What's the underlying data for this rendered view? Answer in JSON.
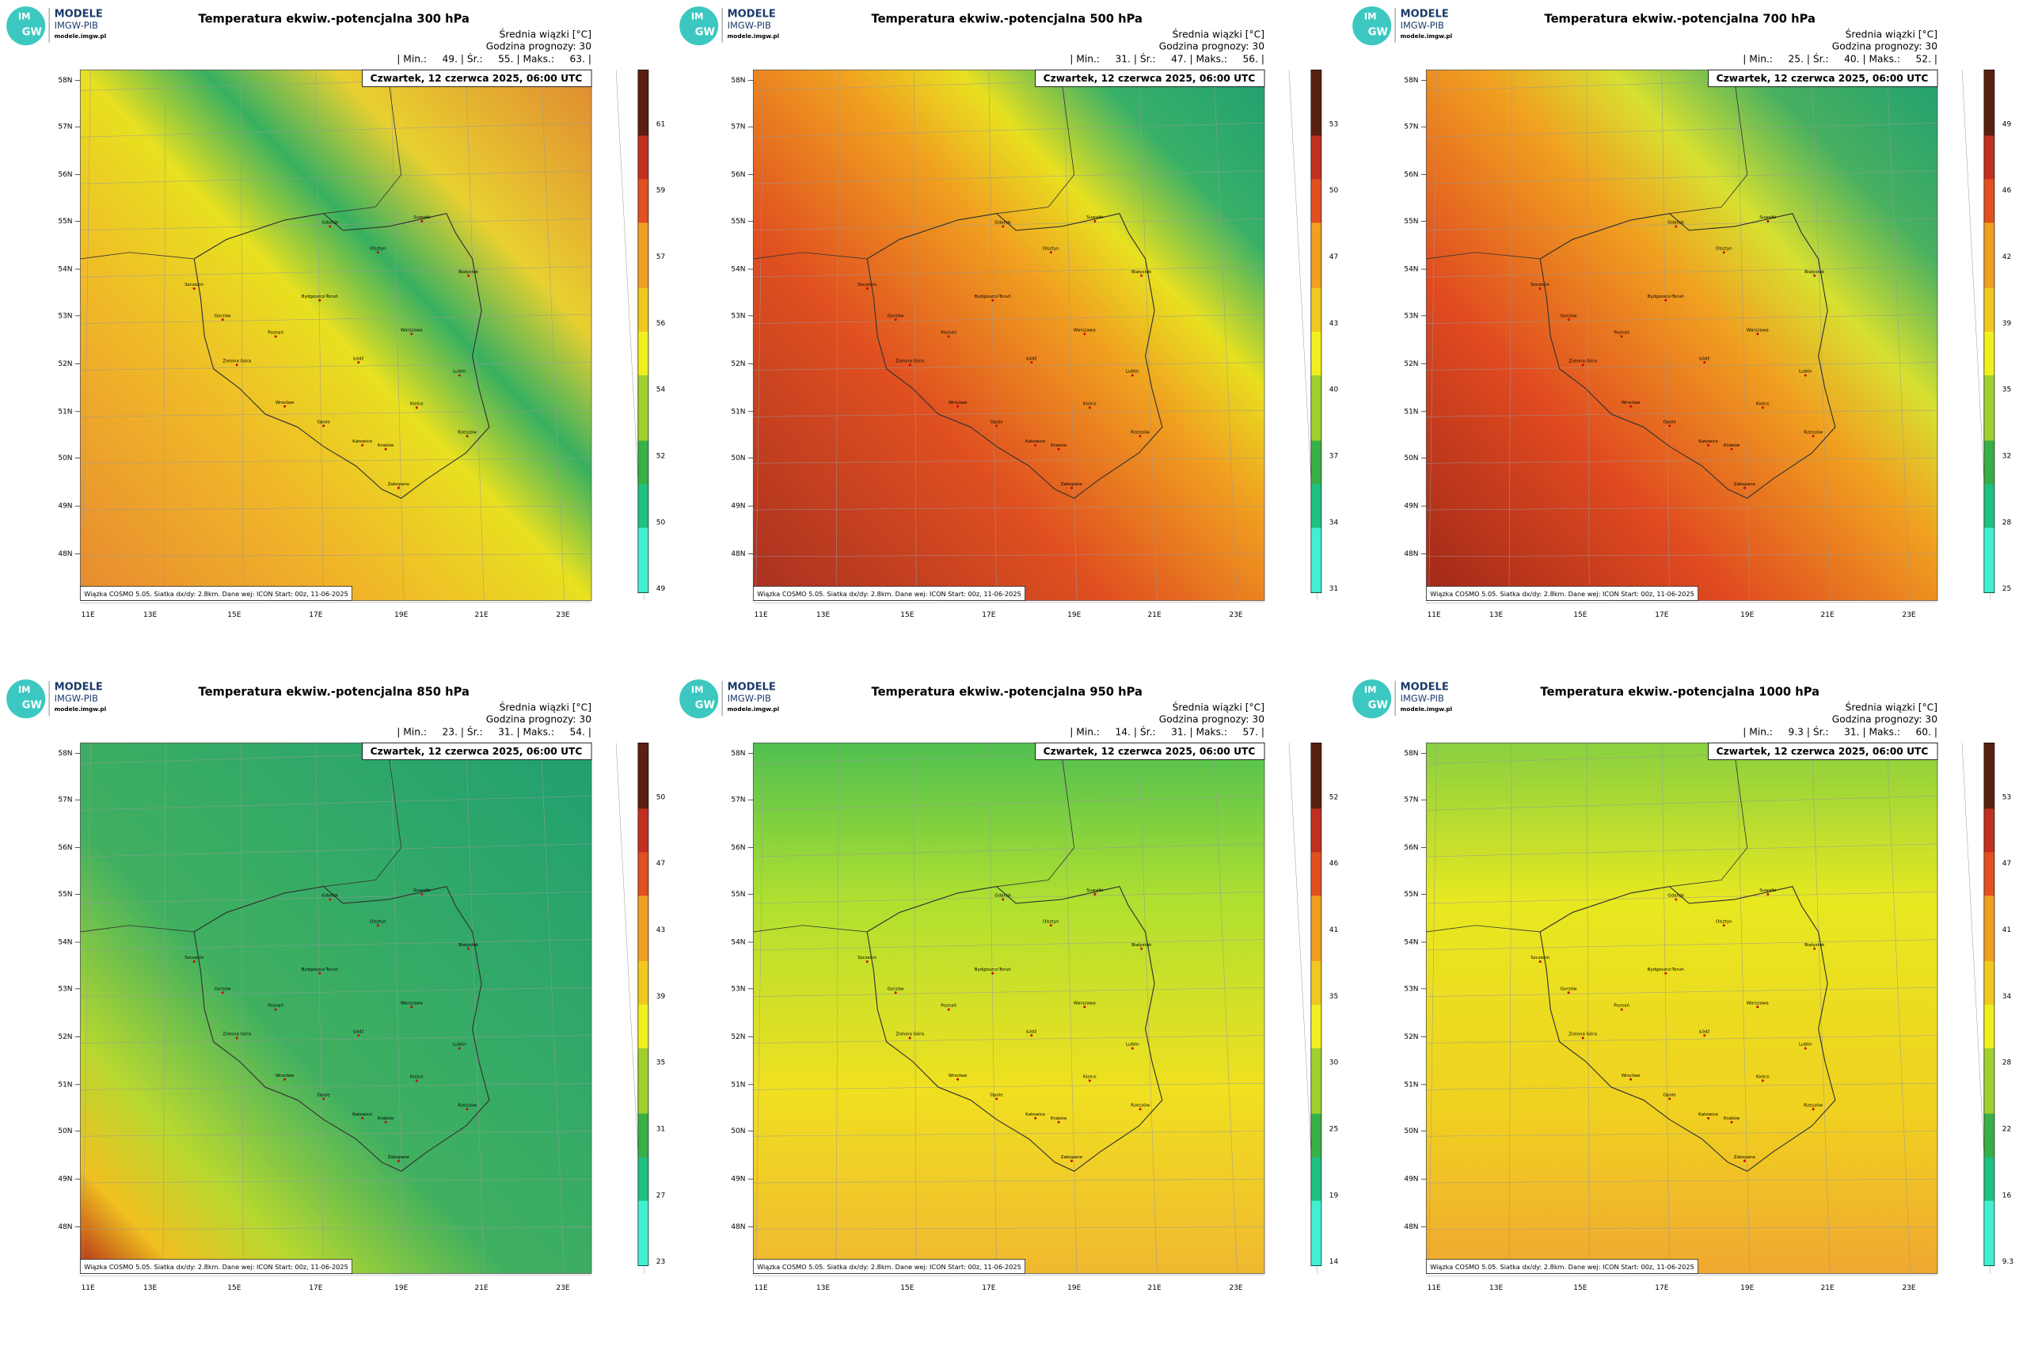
{
  "panels": [
    {
      "title": "Temperatura ekwiw.-potencjalna 300 hPa",
      "stats": "| Min.:     49. | Śr.:     55. | Maks.:     63. |",
      "colorbar": [
        "49",
        "50",
        "52",
        "54",
        "56",
        "57",
        "59",
        "61"
      ]
    },
    {
      "title": "Temperatura ekwiw.-potencjalna 500 hPa",
      "stats": "| Min.:     31. | Śr.:     47. | Maks.:     56. |",
      "colorbar": [
        "31",
        "34",
        "37",
        "40",
        "43",
        "47",
        "50",
        "53"
      ]
    },
    {
      "title": "Temperatura ekwiw.-potencjalna 700 hPa",
      "stats": "| Min.:     25. | Śr.:     40. | Maks.:     52. |",
      "colorbar": [
        "25",
        "28",
        "32",
        "35",
        "39",
        "42",
        "46",
        "49"
      ]
    },
    {
      "title": "Temperatura ekwiw.-potencjalna 850 hPa",
      "stats": "| Min.:     23. | Śr.:     31. | Maks.:     54. |",
      "colorbar": [
        "23",
        "27",
        "31",
        "35",
        "39",
        "43",
        "47",
        "50"
      ]
    },
    {
      "title": "Temperatura ekwiw.-potencjalna 950 hPa",
      "stats": "| Min.:     14. | Śr.:     31. | Maks.:     57. |",
      "colorbar": [
        "14",
        "19",
        "25",
        "30",
        "35",
        "41",
        "46",
        "52"
      ]
    },
    {
      "title": "Temperatura ekwiw.-potencjalna 1000 hPa",
      "stats": "| Min.:     9.3 | Śr.:     31. | Maks.:     60. |",
      "colorbar": [
        "9.3",
        "16",
        "22",
        "28",
        "34",
        "41",
        "47",
        "53"
      ]
    }
  ],
  "logo": {
    "name": "MODELE",
    "org": "IMGW-PIB",
    "url": "modele.imgw.pl",
    "mark_top": "IM",
    "mark_bottom": "GW"
  },
  "subtitle": "Średnia wiązki [°C]",
  "forecast_hour": "Godzina prognozy: 30",
  "date": "Czwartek, 12 czerwca 2025, 06:00 UTC",
  "footer": "Wiązka COSMO 5.05. Siatka dx/dy: 2.8km. Dane wej: ICON Start: 00z, 11-06-2025",
  "lat_labels": [
    "58N",
    "57N",
    "56N",
    "55N",
    "54N",
    "53N",
    "52N",
    "51N",
    "50N",
    "49N",
    "48N"
  ],
  "lon_labels": [
    "11E",
    "13E",
    "15E",
    "17E",
    "19E",
    "21E",
    "23E"
  ],
  "cities": [
    "Gdańsk",
    "Olsztyn",
    "Suwałki",
    "Białystok",
    "Szczecin",
    "Bydgoszcz-Toruń",
    "Gorzów",
    "Poznań",
    "Warszawa",
    "Zielona Góra",
    "Łódź",
    "Lublin",
    "Wrocław",
    "Kielce",
    "Opole",
    "Rzeszów",
    "Katowice",
    "Kraków",
    "Zakopane"
  ]
}
